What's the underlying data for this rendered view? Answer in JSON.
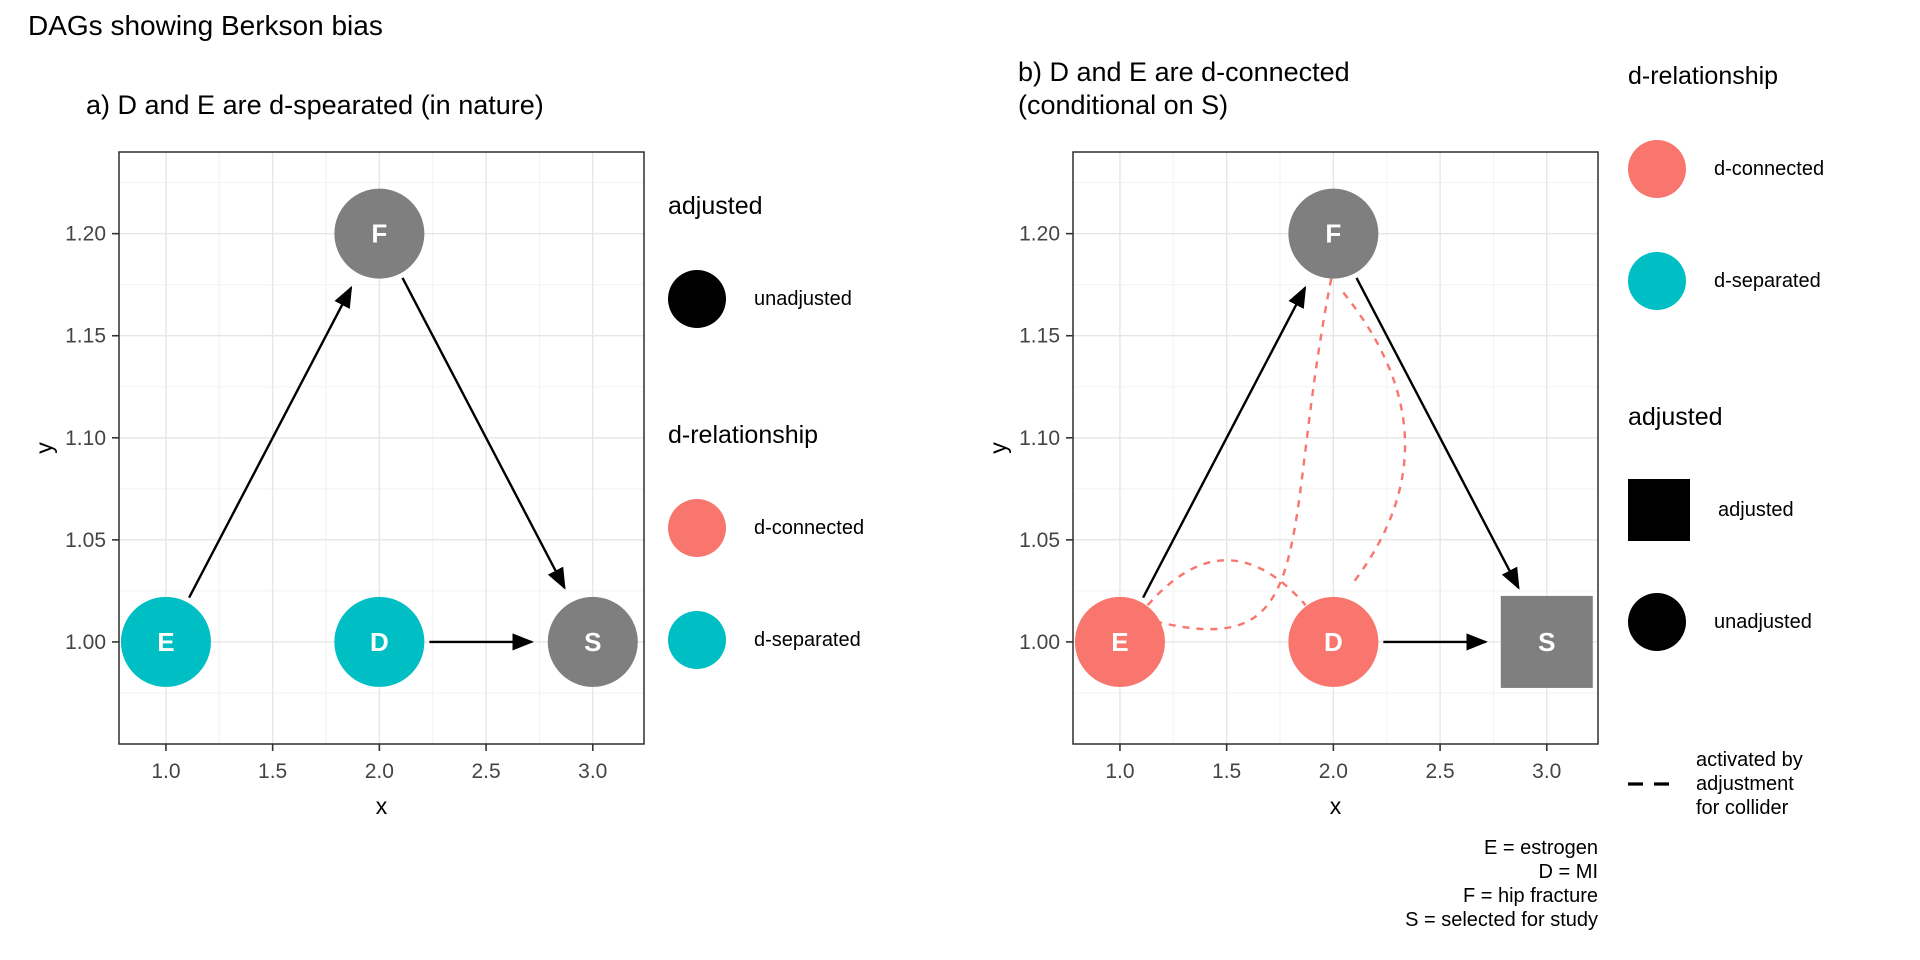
{
  "title": "DAGs showing Berkson bias",
  "colors": {
    "d_connected": "#F8766D",
    "d_separated": "#00BFC4",
    "unadjusted": "#7F7F7F",
    "black": "#000000",
    "grid_major": "#E6E6E6",
    "grid_minor": "#F2F2F2",
    "panel_border": "#2F2F2F",
    "axis_text": "#444444",
    "collider_line": "#F8766D"
  },
  "chart_data": {
    "type": "scatter",
    "subtype": "dag",
    "description": "Two DAG panels drawn as x/y plots with directed edges between labeled nodes",
    "panels": [
      {
        "id": "a",
        "title_lines": [
          "a) D and E are d-spearated (in nature)"
        ],
        "xlabel": "x",
        "ylabel": "y",
        "xlim": [
          0.78,
          3.24
        ],
        "ylim": [
          0.95,
          1.24
        ],
        "x_ticks": [
          "1.0",
          "1.5",
          "2.0",
          "2.5",
          "3.0"
        ],
        "x_tick_values": [
          1.0,
          1.5,
          2.0,
          2.5,
          3.0
        ],
        "y_ticks": [
          "1.00",
          "1.05",
          "1.10",
          "1.15",
          "1.20"
        ],
        "y_tick_values": [
          1.0,
          1.05,
          1.1,
          1.15,
          1.2
        ],
        "nodes": [
          {
            "id": "E",
            "x": 1,
            "y": 1,
            "shape": "circle",
            "color_key": "d_separated"
          },
          {
            "id": "D",
            "x": 2,
            "y": 1,
            "shape": "circle",
            "color_key": "d_separated"
          },
          {
            "id": "F",
            "x": 2,
            "y": 1.2,
            "shape": "circle",
            "color_key": "unadjusted"
          },
          {
            "id": "S",
            "x": 3,
            "y": 1,
            "shape": "circle",
            "color_key": "unadjusted"
          }
        ],
        "edges": [
          {
            "from": "E",
            "to": "F"
          },
          {
            "from": "F",
            "to": "S"
          },
          {
            "from": "D",
            "to": "S"
          }
        ],
        "collider_paths": []
      },
      {
        "id": "b",
        "title_lines": [
          "b) D and E are d-connected",
          "(conditional on S)"
        ],
        "xlabel": "x",
        "ylabel": "y",
        "xlim": [
          0.78,
          3.24
        ],
        "ylim": [
          0.95,
          1.24
        ],
        "x_ticks": [
          "1.0",
          "1.5",
          "2.0",
          "2.5",
          "3.0"
        ],
        "x_tick_values": [
          1.0,
          1.5,
          2.0,
          2.5,
          3.0
        ],
        "y_ticks": [
          "1.00",
          "1.05",
          "1.10",
          "1.15",
          "1.20"
        ],
        "y_tick_values": [
          1.0,
          1.05,
          1.1,
          1.15,
          1.2
        ],
        "nodes": [
          {
            "id": "E",
            "x": 1,
            "y": 1,
            "shape": "circle",
            "color_key": "d_connected"
          },
          {
            "id": "D",
            "x": 2,
            "y": 1,
            "shape": "circle",
            "color_key": "d_connected"
          },
          {
            "id": "F",
            "x": 2,
            "y": 1.2,
            "shape": "circle",
            "color_key": "unadjusted"
          },
          {
            "id": "S",
            "x": 3,
            "y": 1,
            "shape": "square",
            "color_key": "unadjusted"
          }
        ],
        "edges": [
          {
            "from": "E",
            "to": "F"
          },
          {
            "from": "F",
            "to": "S"
          },
          {
            "from": "D",
            "to": "S"
          }
        ],
        "collider_paths": [
          {
            "from": "E",
            "to": "D",
            "path": [
              [
                1.13,
                1.018
              ],
              [
                1.5,
                1.062
              ],
              [
                1.87,
                1.018
              ]
            ]
          },
          {
            "from": "D",
            "to": "F",
            "path": [
              [
                2.1,
                1.03
              ],
              [
                2.6,
                1.1
              ],
              [
                2.04,
                1.172
              ]
            ]
          },
          {
            "from": "F",
            "to": "E",
            "path": [
              [
                1.99,
                1.178
              ],
              [
                1.75,
                1.05
              ],
              [
                1.95,
                0.99
              ],
              [
                1.17,
                1.01
              ]
            ]
          }
        ]
      }
    ]
  },
  "legends": {
    "panel_a": [
      {
        "title": "adjusted",
        "items": [
          {
            "swatch": "circle",
            "color_key": "black",
            "label": "unadjusted"
          }
        ]
      },
      {
        "title": "d-relationship",
        "items": [
          {
            "swatch": "circle",
            "color_key": "d_connected",
            "label": "d-connected"
          },
          {
            "swatch": "circle",
            "color_key": "d_separated",
            "label": "d-separated"
          }
        ]
      }
    ],
    "panel_b": [
      {
        "title": "d-relationship",
        "items": [
          {
            "swatch": "circle",
            "color_key": "d_connected",
            "label": "d-connected"
          },
          {
            "swatch": "circle",
            "color_key": "d_separated",
            "label": "d-separated"
          }
        ]
      },
      {
        "title": "adjusted",
        "items": [
          {
            "swatch": "square",
            "color_key": "black",
            "label": "adjusted"
          },
          {
            "swatch": "circle",
            "color_key": "black",
            "label": "unadjusted"
          }
        ]
      },
      {
        "title": "",
        "items": [
          {
            "swatch": "dashed-line",
            "color_key": "black",
            "label_lines": [
              "activated by",
              "adjustment",
              "for collider"
            ]
          }
        ]
      }
    ]
  },
  "caption_lines": [
    "E = estrogen",
    "D = MI",
    "F = hip fracture",
    "S = selected for study"
  ]
}
